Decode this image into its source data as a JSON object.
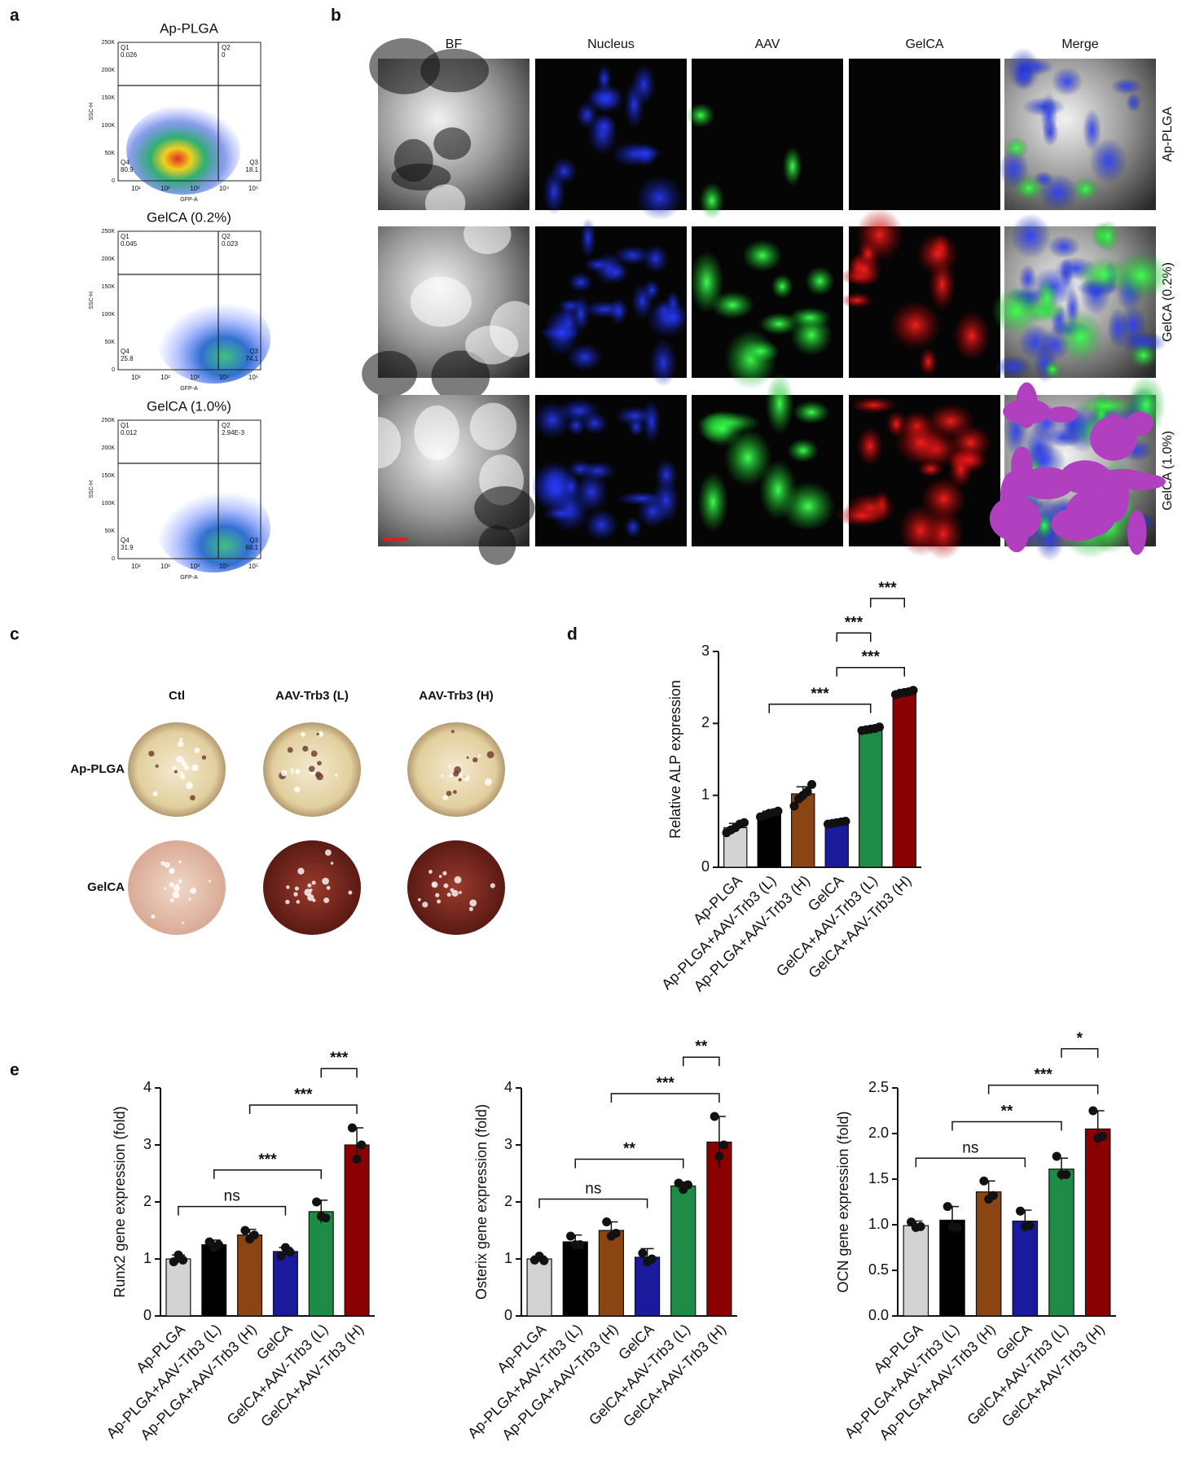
{
  "figure": {
    "panel_labels": [
      "a",
      "b",
      "c",
      "d",
      "e"
    ]
  },
  "flow_cytometry": {
    "x_label": "GFP-A",
    "y_label": "SSC-H",
    "xticks": [
      "10¹",
      "10²",
      "10³",
      "10⁴",
      "10⁵"
    ],
    "yticks": [
      "0",
      "50K",
      "100K",
      "150K",
      "200K",
      "250K"
    ],
    "quadrants": [
      "Q1",
      "Q2",
      "Q3",
      "Q4"
    ],
    "plots": [
      {
        "title": "Ap-PLGA",
        "values": [
          "0.026",
          "0",
          "18.1",
          "80.9"
        ]
      },
      {
        "title": "GelCA (0.2%)",
        "values": [
          "0.045",
          "0.023",
          "74.1",
          "25.8"
        ]
      },
      {
        "title": "GelCA (1.0%)",
        "values": [
          "0.012",
          "2.94E-3",
          "68.1",
          "31.9"
        ]
      }
    ]
  },
  "microscopy": {
    "columns": [
      "BF",
      "Nucleus",
      "AAV",
      "GelCA",
      "Merge"
    ],
    "rows": [
      "Ap-PLGA",
      "GelCA (0.2%)",
      "GelCA (1.0%)"
    ]
  },
  "staining": {
    "columns": [
      "Ctl",
      "AAV-Trb3 (L)",
      "AAV-Trb3 (H)"
    ],
    "rows": [
      "Ap-PLGA",
      "GelCA"
    ]
  },
  "chart_data": [
    {
      "type": "bar",
      "y_label": "Relative  ALP expression",
      "categories": [
        "Ap-PLGA",
        "Ap-PLGA+AAV-Trb3 (L)",
        "Ap-PLGA+AAV-Trb3 (H)",
        "GelCA",
        "GelCA+AAV-Trb3 (L)",
        "GelCA+AAV-Trb3 (H)"
      ],
      "colors": [
        "#d3d3d3",
        "#000000",
        "#8b4513",
        "#1a1a9c",
        "#1e8c46",
        "#8b0000"
      ],
      "values": [
        0.55,
        0.74,
        1.02,
        0.62,
        1.92,
        2.43
      ],
      "errors": [
        0.06,
        0.04,
        0.1,
        0.02,
        0.03,
        0.03
      ],
      "points": [
        [
          0.48,
          0.52,
          0.55,
          0.6,
          0.62
        ],
        [
          0.7,
          0.72,
          0.75,
          0.76,
          0.78
        ],
        [
          0.85,
          0.95,
          1.0,
          1.05,
          1.15
        ],
        [
          0.6,
          0.61,
          0.62,
          0.63,
          0.64
        ],
        [
          1.9,
          1.91,
          1.92,
          1.93,
          1.95
        ],
        [
          2.4,
          2.42,
          2.43,
          2.44,
          2.46
        ]
      ],
      "ylim": [
        0,
        3
      ],
      "yticks": [
        0,
        1,
        2,
        3
      ],
      "annotations": [
        {
          "text": "***",
          "between": [
            1,
            4
          ]
        },
        {
          "text": "***",
          "between": [
            3,
            5
          ]
        },
        {
          "text": "***",
          "between": [
            3,
            4
          ]
        },
        {
          "text": "***",
          "between": [
            4,
            5
          ]
        }
      ]
    },
    {
      "type": "bar",
      "y_label": "Runx2  gene expression (fold)",
      "categories": [
        "Ap-PLGA",
        "Ap-PLGA+AAV-Trb3 (L)",
        "Ap-PLGA+AAV-Trb3 (H)",
        "GelCA",
        "GelCA+AAV-Trb3 (L)",
        "GelCA+AAV-Trb3 (H)"
      ],
      "colors": [
        "#d3d3d3",
        "#000000",
        "#8b4513",
        "#1a1a9c",
        "#1e8c46",
        "#8b0000"
      ],
      "values": [
        1.0,
        1.25,
        1.42,
        1.13,
        1.83,
        3.0
      ],
      "errors": [
        0.07,
        0.08,
        0.1,
        0.07,
        0.2,
        0.3
      ],
      "points": [
        [
          0.95,
          1.07,
          0.98
        ],
        [
          1.3,
          1.2,
          1.25
        ],
        [
          1.5,
          1.35,
          1.42
        ],
        [
          1.05,
          1.2,
          1.12
        ],
        [
          2.0,
          1.75,
          1.72
        ],
        [
          3.3,
          2.75,
          3.0
        ]
      ],
      "ylim": [
        0,
        4
      ],
      "yticks": [
        0,
        1,
        2,
        3,
        4
      ],
      "annotations": [
        {
          "text": "ns",
          "between": [
            0,
            3
          ]
        },
        {
          "text": "***",
          "between": [
            1,
            4
          ]
        },
        {
          "text": "***",
          "between": [
            2,
            5
          ]
        },
        {
          "text": "***",
          "between": [
            4,
            5
          ]
        }
      ]
    },
    {
      "type": "bar",
      "y_label": "Osterix gene expression (fold)",
      "categories": [
        "Ap-PLGA",
        "Ap-PLGA+AAV-Trb3 (L)",
        "Ap-PLGA+AAV-Trb3 (H)",
        "GelCA",
        "GelCA+AAV-Trb3 (L)",
        "GelCA+AAV-Trb3 (H)"
      ],
      "colors": [
        "#d3d3d3",
        "#000000",
        "#8b4513",
        "#1a1a9c",
        "#1e8c46",
        "#8b0000"
      ],
      "values": [
        1.0,
        1.3,
        1.5,
        1.03,
        2.28,
        3.05
      ],
      "errors": [
        0.05,
        0.12,
        0.15,
        0.15,
        0.07,
        0.45
      ],
      "points": [
        [
          0.98,
          1.05,
          0.97
        ],
        [
          1.4,
          1.25,
          1.25
        ],
        [
          1.65,
          1.4,
          1.45
        ],
        [
          1.1,
          0.95,
          1.0
        ],
        [
          2.33,
          2.22,
          2.3
        ],
        [
          3.5,
          2.8,
          3.0
        ]
      ],
      "ylim": [
        0,
        4
      ],
      "yticks": [
        0,
        1,
        2,
        3,
        4
      ],
      "annotations": [
        {
          "text": "ns",
          "between": [
            0,
            3
          ]
        },
        {
          "text": "**",
          "between": [
            1,
            4
          ]
        },
        {
          "text": "***",
          "between": [
            2,
            5
          ]
        },
        {
          "text": "**",
          "between": [
            4,
            5
          ]
        }
      ]
    },
    {
      "type": "bar",
      "y_label": "OCN gene expression (fold)",
      "categories": [
        "Ap-PLGA",
        "Ap-PLGA+AAV-Trb3 (L)",
        "Ap-PLGA+AAV-Trb3 (H)",
        "GelCA",
        "GelCA+AAV-Trb3 (L)",
        "GelCA+AAV-Trb3 (H)"
      ],
      "colors": [
        "#d3d3d3",
        "#000000",
        "#8b4513",
        "#1a1a9c",
        "#1e8c46",
        "#8b0000"
      ],
      "values": [
        0.99,
        1.05,
        1.36,
        1.04,
        1.61,
        2.05
      ],
      "errors": [
        0.05,
        0.15,
        0.12,
        0.12,
        0.12,
        0.2
      ],
      "points": [
        [
          1.03,
          0.97,
          0.98
        ],
        [
          1.2,
          0.98,
          0.97
        ],
        [
          1.48,
          1.28,
          1.32
        ],
        [
          1.15,
          0.98,
          0.99
        ],
        [
          1.75,
          1.55,
          1.55
        ],
        [
          2.25,
          1.95,
          1.97
        ]
      ],
      "ylim": [
        0,
        2.5
      ],
      "yticks": [
        {
          "value": 0,
          "label": "0.0"
        },
        0.5,
        {
          "value": 1,
          "label": "1.0"
        },
        1.5,
        {
          "value": 2,
          "label": "2.0"
        },
        2.5
      ],
      "annotations": [
        {
          "text": "ns",
          "between": [
            0,
            3
          ]
        },
        {
          "text": "**",
          "between": [
            1,
            4
          ]
        },
        {
          "text": "***",
          "between": [
            2,
            5
          ]
        },
        {
          "text": "*",
          "between": [
            4,
            5
          ]
        }
      ]
    }
  ]
}
